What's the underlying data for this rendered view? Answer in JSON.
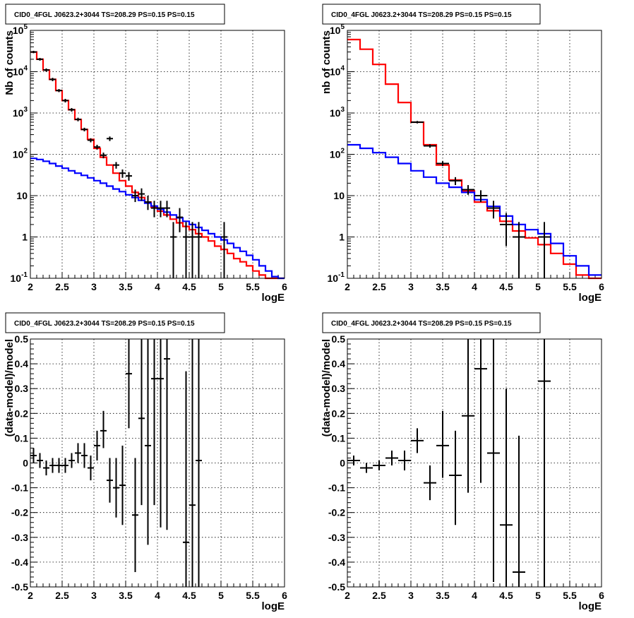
{
  "chart_data": [
    {
      "id": "top-left",
      "type": "line",
      "title": "CID0_4FGL J0623.2+3044 TS=208.29 PS=0.15 PS=0.15",
      "xlabel": "logE",
      "ylabel": "Nb of counts",
      "xlim": [
        2,
        6
      ],
      "ylim": [
        0.1,
        100000
      ],
      "yscale": "log",
      "grid": true,
      "x_ticks": [
        "2",
        "2.5",
        "3",
        "3.5",
        "4",
        "4.5",
        "5",
        "5.5",
        "6"
      ],
      "y_ticks": [
        {
          "value": 0.1,
          "base": "10",
          "exp": "-1"
        },
        {
          "value": 1,
          "base": "1",
          "exp": ""
        },
        {
          "value": 10,
          "base": "10",
          "exp": ""
        },
        {
          "value": 100,
          "base": "10",
          "exp": "2"
        },
        {
          "value": 1000,
          "base": "10",
          "exp": "3"
        },
        {
          "value": 10000,
          "base": "10",
          "exp": "4"
        },
        {
          "value": 100000,
          "base": "10",
          "exp": "5"
        }
      ],
      "bin_edges": [
        2.0,
        2.1,
        2.2,
        2.3,
        2.4,
        2.5,
        2.6,
        2.7,
        2.8,
        2.9,
        3.0,
        3.1,
        3.2,
        3.3,
        3.4,
        3.5,
        3.6,
        3.7,
        3.8,
        3.9,
        4.0,
        4.1,
        4.2,
        4.3,
        4.4,
        4.5,
        4.6,
        4.7,
        4.8,
        4.9,
        5.0,
        5.1,
        5.2,
        5.3,
        5.4,
        5.5,
        5.6,
        5.7,
        5.8,
        5.9,
        6.0
      ],
      "series": [
        {
          "color": "#ff0000",
          "style": "step",
          "values": [
            30000,
            20000,
            11000,
            6500,
            3500,
            2000,
            1200,
            700,
            400,
            230,
            140,
            85,
            55,
            35,
            23,
            17,
            12,
            9,
            7,
            5.2,
            4.2,
            3.4,
            2.7,
            2.2,
            1.8,
            1.5,
            1.2,
            1.0,
            0.8,
            0.6,
            0.5,
            0.4,
            0.3,
            0.25,
            0.2,
            0.15,
            0.12,
            0.1,
            0.1,
            0.1
          ]
        },
        {
          "color": "#0000ff",
          "style": "step",
          "values": [
            80,
            75,
            68,
            60,
            52,
            46,
            40,
            35,
            31,
            27,
            23,
            20,
            17,
            14.5,
            12.5,
            10.5,
            9,
            7.7,
            6.6,
            5.6,
            4.7,
            4,
            3.4,
            2.9,
            2.4,
            2,
            1.7,
            1.45,
            1.2,
            1,
            0.85,
            0.7,
            0.55,
            0.45,
            0.36,
            0.28,
            0.2,
            0.15,
            0.11,
            0.1
          ]
        }
      ],
      "points": [
        {
          "x": 2.05,
          "y": 30000,
          "ylo": 28000,
          "yhi": 32000
        },
        {
          "x": 2.15,
          "y": 20000,
          "ylo": 18500,
          "yhi": 21500
        },
        {
          "x": 2.25,
          "y": 11000,
          "ylo": 10000,
          "yhi": 12000
        },
        {
          "x": 2.35,
          "y": 6500,
          "ylo": 5900,
          "yhi": 7100
        },
        {
          "x": 2.45,
          "y": 3500,
          "ylo": 3200,
          "yhi": 3800
        },
        {
          "x": 2.55,
          "y": 2000,
          "ylo": 1800,
          "yhi": 2200
        },
        {
          "x": 2.65,
          "y": 1200,
          "ylo": 1080,
          "yhi": 1320
        },
        {
          "x": 2.75,
          "y": 700,
          "ylo": 630,
          "yhi": 770
        },
        {
          "x": 2.85,
          "y": 400,
          "ylo": 360,
          "yhi": 440
        },
        {
          "x": 2.95,
          "y": 220,
          "ylo": 195,
          "yhi": 245
        },
        {
          "x": 3.05,
          "y": 150,
          "ylo": 130,
          "yhi": 170
        },
        {
          "x": 3.15,
          "y": 95,
          "ylo": 80,
          "yhi": 110
        },
        {
          "x": 3.25,
          "y": 240,
          "ylo": 210,
          "yhi": 270
        },
        {
          "x": 3.35,
          "y": 55,
          "ylo": 45,
          "yhi": 65
        },
        {
          "x": 3.45,
          "y": 35,
          "ylo": 27,
          "yhi": 43
        },
        {
          "x": 3.55,
          "y": 30,
          "ylo": 23,
          "yhi": 37
        },
        {
          "x": 3.65,
          "y": 10,
          "ylo": 7,
          "yhi": 14
        },
        {
          "x": 3.75,
          "y": 11,
          "ylo": 7.5,
          "yhi": 15
        },
        {
          "x": 3.85,
          "y": 7,
          "ylo": 4.5,
          "yhi": 10
        },
        {
          "x": 3.95,
          "y": 5,
          "ylo": 3,
          "yhi": 7.5
        },
        {
          "x": 4.05,
          "y": 5,
          "ylo": 3,
          "yhi": 7.5
        },
        {
          "x": 4.15,
          "y": 5,
          "ylo": 3,
          "yhi": 7.5
        },
        {
          "x": 4.25,
          "y": 1,
          "ylo": 0.1,
          "yhi": 2.3
        },
        {
          "x": 4.35,
          "y": 3,
          "ylo": 1.3,
          "yhi": 5
        },
        {
          "x": 4.45,
          "y": 1,
          "ylo": 0.1,
          "yhi": 2.3
        },
        {
          "x": 4.55,
          "y": 1,
          "ylo": 0.1,
          "yhi": 2.3
        },
        {
          "x": 4.65,
          "y": 1,
          "ylo": 0.1,
          "yhi": 2.3
        },
        {
          "x": 5.05,
          "y": 1,
          "ylo": 0.1,
          "yhi": 2.3
        }
      ],
      "point_half_width": 0.05
    },
    {
      "id": "top-right",
      "type": "line",
      "title": "CID0_4FGL J0623.2+3044 TS=208.29 PS=0.15 PS=0.15",
      "xlabel": "logE",
      "ylabel": "nb of counts",
      "xlim": [
        2,
        6
      ],
      "ylim": [
        0.1,
        100000
      ],
      "yscale": "log",
      "grid": true,
      "x_ticks": [
        "2",
        "2.5",
        "3",
        "3.5",
        "4",
        "4.5",
        "5",
        "5.5",
        "6"
      ],
      "y_ticks": [
        {
          "value": 0.1,
          "base": "10",
          "exp": "-1"
        },
        {
          "value": 1,
          "base": "1",
          "exp": ""
        },
        {
          "value": 10,
          "base": "10",
          "exp": ""
        },
        {
          "value": 100,
          "base": "10",
          "exp": "2"
        },
        {
          "value": 1000,
          "base": "10",
          "exp": "3"
        },
        {
          "value": 10000,
          "base": "10",
          "exp": "4"
        },
        {
          "value": 100000,
          "base": "10",
          "exp": "5"
        }
      ],
      "bin_edges": [
        2.0,
        2.2,
        2.4,
        2.6,
        2.8,
        3.0,
        3.2,
        3.4,
        3.6,
        3.8,
        4.0,
        4.2,
        4.4,
        4.6,
        4.8,
        5.0,
        5.2,
        5.4,
        5.6,
        5.8,
        6.0
      ],
      "series": [
        {
          "color": "#ff0000",
          "style": "step",
          "values": [
            60000,
            35000,
            15000,
            5000,
            1800,
            600,
            170,
            55,
            24,
            13,
            7,
            4.3,
            2.4,
            1.4,
            0.95,
            0.65,
            0.4,
            0.22,
            0.12,
            0.1
          ]
        },
        {
          "color": "#0000ff",
          "style": "step",
          "values": [
            170,
            140,
            110,
            85,
            60,
            40,
            28,
            20,
            16,
            12,
            8,
            5.5,
            3.2,
            2,
            1.5,
            1.2,
            0.7,
            0.35,
            0.2,
            0.12
          ]
        }
      ],
      "points": [
        {
          "x": 3.1,
          "y": 600,
          "ylo": 560,
          "yhi": 640
        },
        {
          "x": 3.3,
          "y": 160,
          "ylo": 145,
          "yhi": 175
        },
        {
          "x": 3.5,
          "y": 60,
          "ylo": 52,
          "yhi": 68
        },
        {
          "x": 3.7,
          "y": 23,
          "ylo": 18,
          "yhi": 28
        },
        {
          "x": 3.9,
          "y": 14,
          "ylo": 10.5,
          "yhi": 18
        },
        {
          "x": 4.1,
          "y": 10,
          "ylo": 7,
          "yhi": 13.5
        },
        {
          "x": 4.3,
          "y": 5,
          "ylo": 2.8,
          "yhi": 7.5
        },
        {
          "x": 4.5,
          "y": 2,
          "ylo": 0.6,
          "yhi": 3.8
        },
        {
          "x": 4.7,
          "y": 1,
          "ylo": 0.1,
          "yhi": 2.3
        },
        {
          "x": 5.1,
          "y": 1,
          "ylo": 0.1,
          "yhi": 2.3
        }
      ],
      "point_half_width": 0.1
    },
    {
      "id": "bottom-left",
      "type": "scatter",
      "title": "CID0_4FGL J0623.2+3044 TS=208.29 PS=0.15 PS=0.15",
      "xlabel": "logE",
      "ylabel": "(data-model)/model",
      "xlim": [
        2,
        6
      ],
      "ylim": [
        -0.5,
        0.5
      ],
      "yscale": "linear",
      "grid": true,
      "x_ticks": [
        "2",
        "2.5",
        "3",
        "3.5",
        "4",
        "4.5",
        "5",
        "5.5",
        "6"
      ],
      "y_ticks_linear": [
        "-0.5",
        "-0.4",
        "-0.3",
        "-0.2",
        "-0.1",
        "0",
        "0.1",
        "0.2",
        "0.3",
        "0.4",
        "0.5"
      ],
      "points": [
        {
          "x": 2.05,
          "y": 0.03,
          "ylo": 0.0,
          "yhi": 0.06
        },
        {
          "x": 2.15,
          "y": 0.01,
          "ylo": -0.02,
          "yhi": 0.04
        },
        {
          "x": 2.25,
          "y": -0.02,
          "ylo": -0.05,
          "yhi": 0.01
        },
        {
          "x": 2.35,
          "y": -0.01,
          "ylo": -0.04,
          "yhi": 0.02
        },
        {
          "x": 2.45,
          "y": -0.01,
          "ylo": -0.04,
          "yhi": 0.02
        },
        {
          "x": 2.55,
          "y": -0.01,
          "ylo": -0.04,
          "yhi": 0.02
        },
        {
          "x": 2.65,
          "y": 0.01,
          "ylo": -0.02,
          "yhi": 0.04
        },
        {
          "x": 2.75,
          "y": 0.04,
          "ylo": 0.0,
          "yhi": 0.08
        },
        {
          "x": 2.85,
          "y": 0.03,
          "ylo": -0.02,
          "yhi": 0.08
        },
        {
          "x": 2.95,
          "y": -0.02,
          "ylo": -0.07,
          "yhi": 0.03
        },
        {
          "x": 3.05,
          "y": 0.07,
          "ylo": 0.01,
          "yhi": 0.13
        },
        {
          "x": 3.15,
          "y": 0.13,
          "ylo": 0.06,
          "yhi": 0.21
        },
        {
          "x": 3.25,
          "y": -0.07,
          "ylo": -0.16,
          "yhi": 0.02
        },
        {
          "x": 3.35,
          "y": -0.1,
          "ylo": -0.22,
          "yhi": 0.02
        },
        {
          "x": 3.45,
          "y": -0.09,
          "ylo": -0.25,
          "yhi": 0.07
        },
        {
          "x": 3.55,
          "y": 0.36,
          "ylo": 0.14,
          "yhi": 0.5
        },
        {
          "x": 3.65,
          "y": -0.21,
          "ylo": -0.44,
          "yhi": 0.02
        },
        {
          "x": 3.75,
          "y": 0.18,
          "ylo": -0.17,
          "yhi": 0.5
        },
        {
          "x": 3.85,
          "y": 0.07,
          "ylo": -0.33,
          "yhi": 0.5
        },
        {
          "x": 3.95,
          "y": 0.34,
          "ylo": -0.17,
          "yhi": 0.5
        },
        {
          "x": 4.05,
          "y": 0.34,
          "ylo": -0.26,
          "yhi": 0.5
        },
        {
          "x": 4.15,
          "y": 0.42,
          "ylo": -0.27,
          "yhi": 0.5
        },
        {
          "x": 4.45,
          "y": -0.32,
          "ylo": -0.5,
          "yhi": 0.37
        },
        {
          "x": 4.55,
          "y": -0.17,
          "ylo": -0.5,
          "yhi": 0.5
        },
        {
          "x": 4.65,
          "y": 0.01,
          "ylo": -0.5,
          "yhi": 0.5
        }
      ],
      "point_half_width": 0.05
    },
    {
      "id": "bottom-right",
      "type": "scatter",
      "title": "CID0_4FGL J0623.2+3044 TS=208.29 PS=0.15 PS=0.15",
      "xlabel": "logE",
      "ylabel": "(data-model)/model",
      "xlim": [
        2,
        6
      ],
      "ylim": [
        -0.5,
        0.5
      ],
      "yscale": "linear",
      "grid": true,
      "x_ticks": [
        "2",
        "2.5",
        "3",
        "3.5",
        "4",
        "4.5",
        "5",
        "5.5",
        "6"
      ],
      "y_ticks_linear": [
        "-0.5",
        "-0.4",
        "-0.3",
        "-0.2",
        "-0.1",
        "0",
        "0.1",
        "0.2",
        "0.3",
        "0.4",
        "0.5"
      ],
      "points": [
        {
          "x": 2.1,
          "y": 0.01,
          "ylo": -0.01,
          "yhi": 0.03
        },
        {
          "x": 2.3,
          "y": -0.02,
          "ylo": -0.04,
          "yhi": 0.0
        },
        {
          "x": 2.5,
          "y": -0.01,
          "ylo": -0.03,
          "yhi": 0.01
        },
        {
          "x": 2.7,
          "y": 0.02,
          "ylo": -0.01,
          "yhi": 0.05
        },
        {
          "x": 2.9,
          "y": 0.01,
          "ylo": -0.03,
          "yhi": 0.05
        },
        {
          "x": 3.1,
          "y": 0.09,
          "ylo": 0.04,
          "yhi": 0.14
        },
        {
          "x": 3.3,
          "y": -0.08,
          "ylo": -0.15,
          "yhi": -0.01
        },
        {
          "x": 3.5,
          "y": 0.07,
          "ylo": -0.06,
          "yhi": 0.21
        },
        {
          "x": 3.7,
          "y": -0.05,
          "ylo": -0.25,
          "yhi": 0.13
        },
        {
          "x": 3.9,
          "y": 0.19,
          "ylo": -0.12,
          "yhi": 0.5
        },
        {
          "x": 4.1,
          "y": 0.38,
          "ylo": -0.08,
          "yhi": 0.5
        },
        {
          "x": 4.3,
          "y": 0.04,
          "ylo": -0.48,
          "yhi": 0.5
        },
        {
          "x": 4.5,
          "y": -0.25,
          "ylo": -0.5,
          "yhi": 0.3
        },
        {
          "x": 4.7,
          "y": -0.44,
          "ylo": -0.5,
          "yhi": 0.11
        },
        {
          "x": 5.1,
          "y": 0.33,
          "ylo": -0.5,
          "yhi": 0.5
        }
      ],
      "point_half_width": 0.1
    }
  ]
}
